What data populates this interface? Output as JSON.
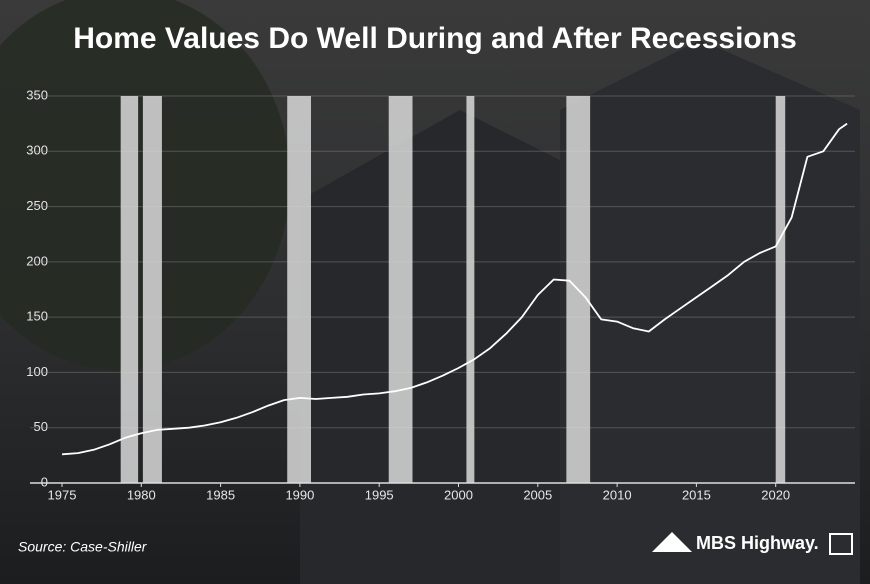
{
  "chart_data": {
    "type": "line",
    "title": "Home Values Do Well During and After Recessions",
    "source": "Source: Case-Shiller",
    "brand": "MBS Highway.",
    "x": [
      1975,
      1976,
      1977,
      1978,
      1979,
      1980,
      1981,
      1982,
      1983,
      1984,
      1985,
      1986,
      1987,
      1988,
      1989,
      1990,
      1991,
      1992,
      1993,
      1994,
      1995,
      1996,
      1997,
      1998,
      1999,
      2000,
      2001,
      2002,
      2003,
      2004,
      2005,
      2006,
      2007,
      2008,
      2009,
      2010,
      2011,
      2012,
      2013,
      2014,
      2015,
      2016,
      2017,
      2018,
      2019,
      2020,
      2021,
      2022,
      2023,
      2024,
      2024.5
    ],
    "values": [
      26,
      27,
      30,
      35,
      41,
      45,
      48,
      49,
      50,
      52,
      55,
      59,
      64,
      70,
      75,
      77,
      76,
      77,
      78,
      80,
      81,
      83,
      86,
      91,
      97,
      104,
      112,
      122,
      135,
      150,
      170,
      184,
      183,
      168,
      148,
      146,
      140,
      137,
      148,
      158,
      168,
      178,
      188,
      200,
      208,
      214,
      240,
      295,
      300,
      320,
      325
    ],
    "color": "#ffffff",
    "recessions": [
      [
        1978.7,
        1979.8
      ],
      [
        1980.1,
        1981.3
      ],
      [
        1989.2,
        1990.7
      ],
      [
        1995.6,
        1997.1
      ],
      [
        2000.5,
        2001
      ],
      [
        2006.8,
        2008.3
      ],
      [
        2020,
        2020.6
      ]
    ],
    "recession_color": "#d9d9d9",
    "xlim": [
      1975,
      2025
    ],
    "ylim": [
      0,
      350
    ],
    "xticks": [
      1975,
      1980,
      1985,
      1990,
      1995,
      2000,
      2005,
      2010,
      2015,
      2020
    ],
    "yticks": [
      0,
      50,
      100,
      150,
      200,
      250,
      300,
      350
    ],
    "grid": true
  }
}
